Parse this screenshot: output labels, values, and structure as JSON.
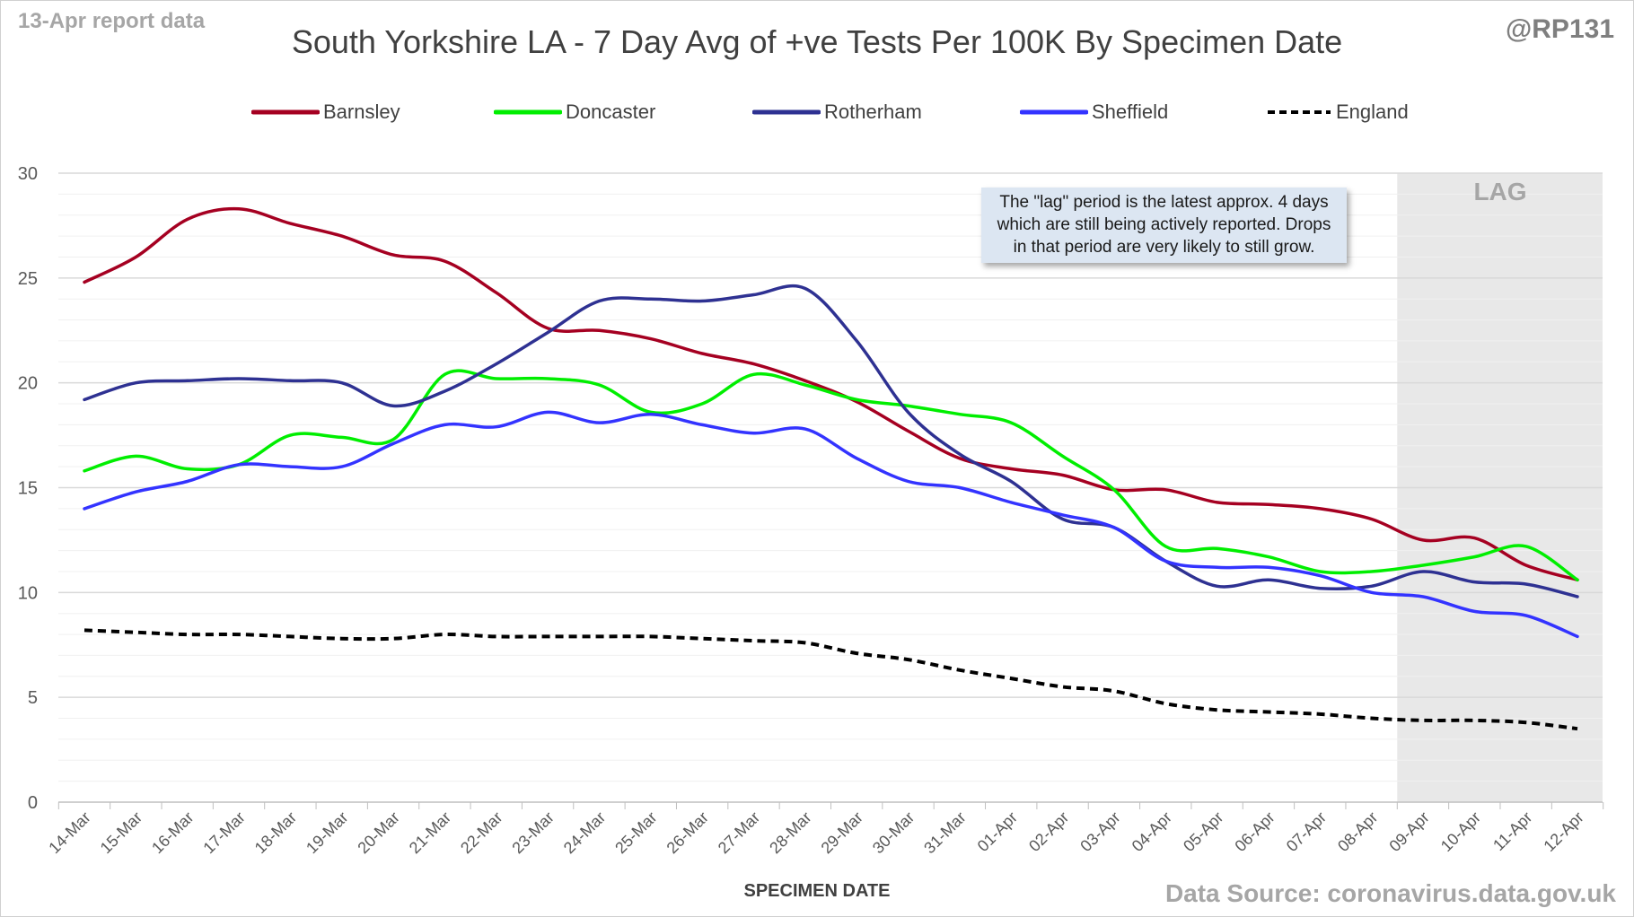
{
  "header": {
    "report_date": "13-Apr report data",
    "handle": "@RP131",
    "source": "Data Source: coronavirus.data.gov.uk"
  },
  "colors": {
    "barnsley": "#a50021",
    "doncaster": "#00ee00",
    "rotherham": "#2e3192",
    "sheffield": "#3333ff",
    "england": "#000000",
    "lag_band": "#e8e8e8"
  },
  "chart_data": {
    "type": "line",
    "title": "South Yorkshire LA - 7 Day Avg of +ve Tests Per 100K By Specimen Date",
    "xlabel": "SPECIMEN DATE",
    "ylabel": "",
    "ylim": [
      0,
      30
    ],
    "yticks": [
      0,
      5,
      10,
      15,
      20,
      25,
      30
    ],
    "grid": "horizontal, with minor lines",
    "legend_position": "top",
    "categories": [
      "14-Mar",
      "15-Mar",
      "16-Mar",
      "17-Mar",
      "18-Mar",
      "19-Mar",
      "20-Mar",
      "21-Mar",
      "22-Mar",
      "23-Mar",
      "24-Mar",
      "25-Mar",
      "26-Mar",
      "27-Mar",
      "28-Mar",
      "29-Mar",
      "30-Mar",
      "31-Mar",
      "01-Apr",
      "02-Apr",
      "03-Apr",
      "04-Apr",
      "05-Apr",
      "06-Apr",
      "07-Apr",
      "08-Apr",
      "09-Apr",
      "10-Apr",
      "11-Apr",
      "12-Apr"
    ],
    "series": [
      {
        "name": "Barnsley",
        "style": "solid",
        "values": [
          24.8,
          26.0,
          27.8,
          28.3,
          27.6,
          27.0,
          26.1,
          25.8,
          24.3,
          22.6,
          22.5,
          22.1,
          21.4,
          20.9,
          20.1,
          19.1,
          17.7,
          16.4,
          15.9,
          15.6,
          14.9,
          14.9,
          14.3,
          14.2,
          14.0,
          13.5,
          12.5,
          12.6,
          11.3,
          10.6
        ]
      },
      {
        "name": "Doncaster",
        "style": "solid",
        "values": [
          15.8,
          16.5,
          15.9,
          16.1,
          17.5,
          17.4,
          17.3,
          20.4,
          20.2,
          20.2,
          19.9,
          18.6,
          19.0,
          20.4,
          19.9,
          19.2,
          18.9,
          18.5,
          18.1,
          16.5,
          14.9,
          12.2,
          12.1,
          11.7,
          11.0,
          11.0,
          11.3,
          11.7,
          12.2,
          10.6
        ]
      },
      {
        "name": "Rotherham",
        "style": "solid",
        "values": [
          19.2,
          20.0,
          20.1,
          20.2,
          20.1,
          20.0,
          18.9,
          19.6,
          20.9,
          22.4,
          23.9,
          24.0,
          23.9,
          24.2,
          24.5,
          22.0,
          18.6,
          16.6,
          15.3,
          13.5,
          13.1,
          11.5,
          10.3,
          10.6,
          10.2,
          10.3,
          11.0,
          10.5,
          10.4,
          9.8
        ]
      },
      {
        "name": "Sheffield",
        "style": "solid",
        "values": [
          14.0,
          14.8,
          15.3,
          16.1,
          16.0,
          16.0,
          17.1,
          18.0,
          17.9,
          18.6,
          18.1,
          18.5,
          18.0,
          17.6,
          17.8,
          16.4,
          15.3,
          15.0,
          14.3,
          13.7,
          13.1,
          11.5,
          11.2,
          11.2,
          10.8,
          10.0,
          9.8,
          9.1,
          8.9,
          7.9
        ]
      },
      {
        "name": "England",
        "style": "dashed",
        "values": [
          8.2,
          8.1,
          8.0,
          8.0,
          7.9,
          7.8,
          7.8,
          8.0,
          7.9,
          7.9,
          7.9,
          7.9,
          7.8,
          7.7,
          7.6,
          7.1,
          6.8,
          6.3,
          5.9,
          5.5,
          5.3,
          4.7,
          4.4,
          4.3,
          4.2,
          4.0,
          3.9,
          3.9,
          3.8,
          3.5
        ]
      }
    ],
    "lag_region": {
      "from": "09-Apr",
      "to": "12-Apr",
      "label": "LAG"
    },
    "annotation": "The \"lag\" period is the latest approx. 4 days which are still being actively reported. Drops in that period are very likely to still grow."
  }
}
